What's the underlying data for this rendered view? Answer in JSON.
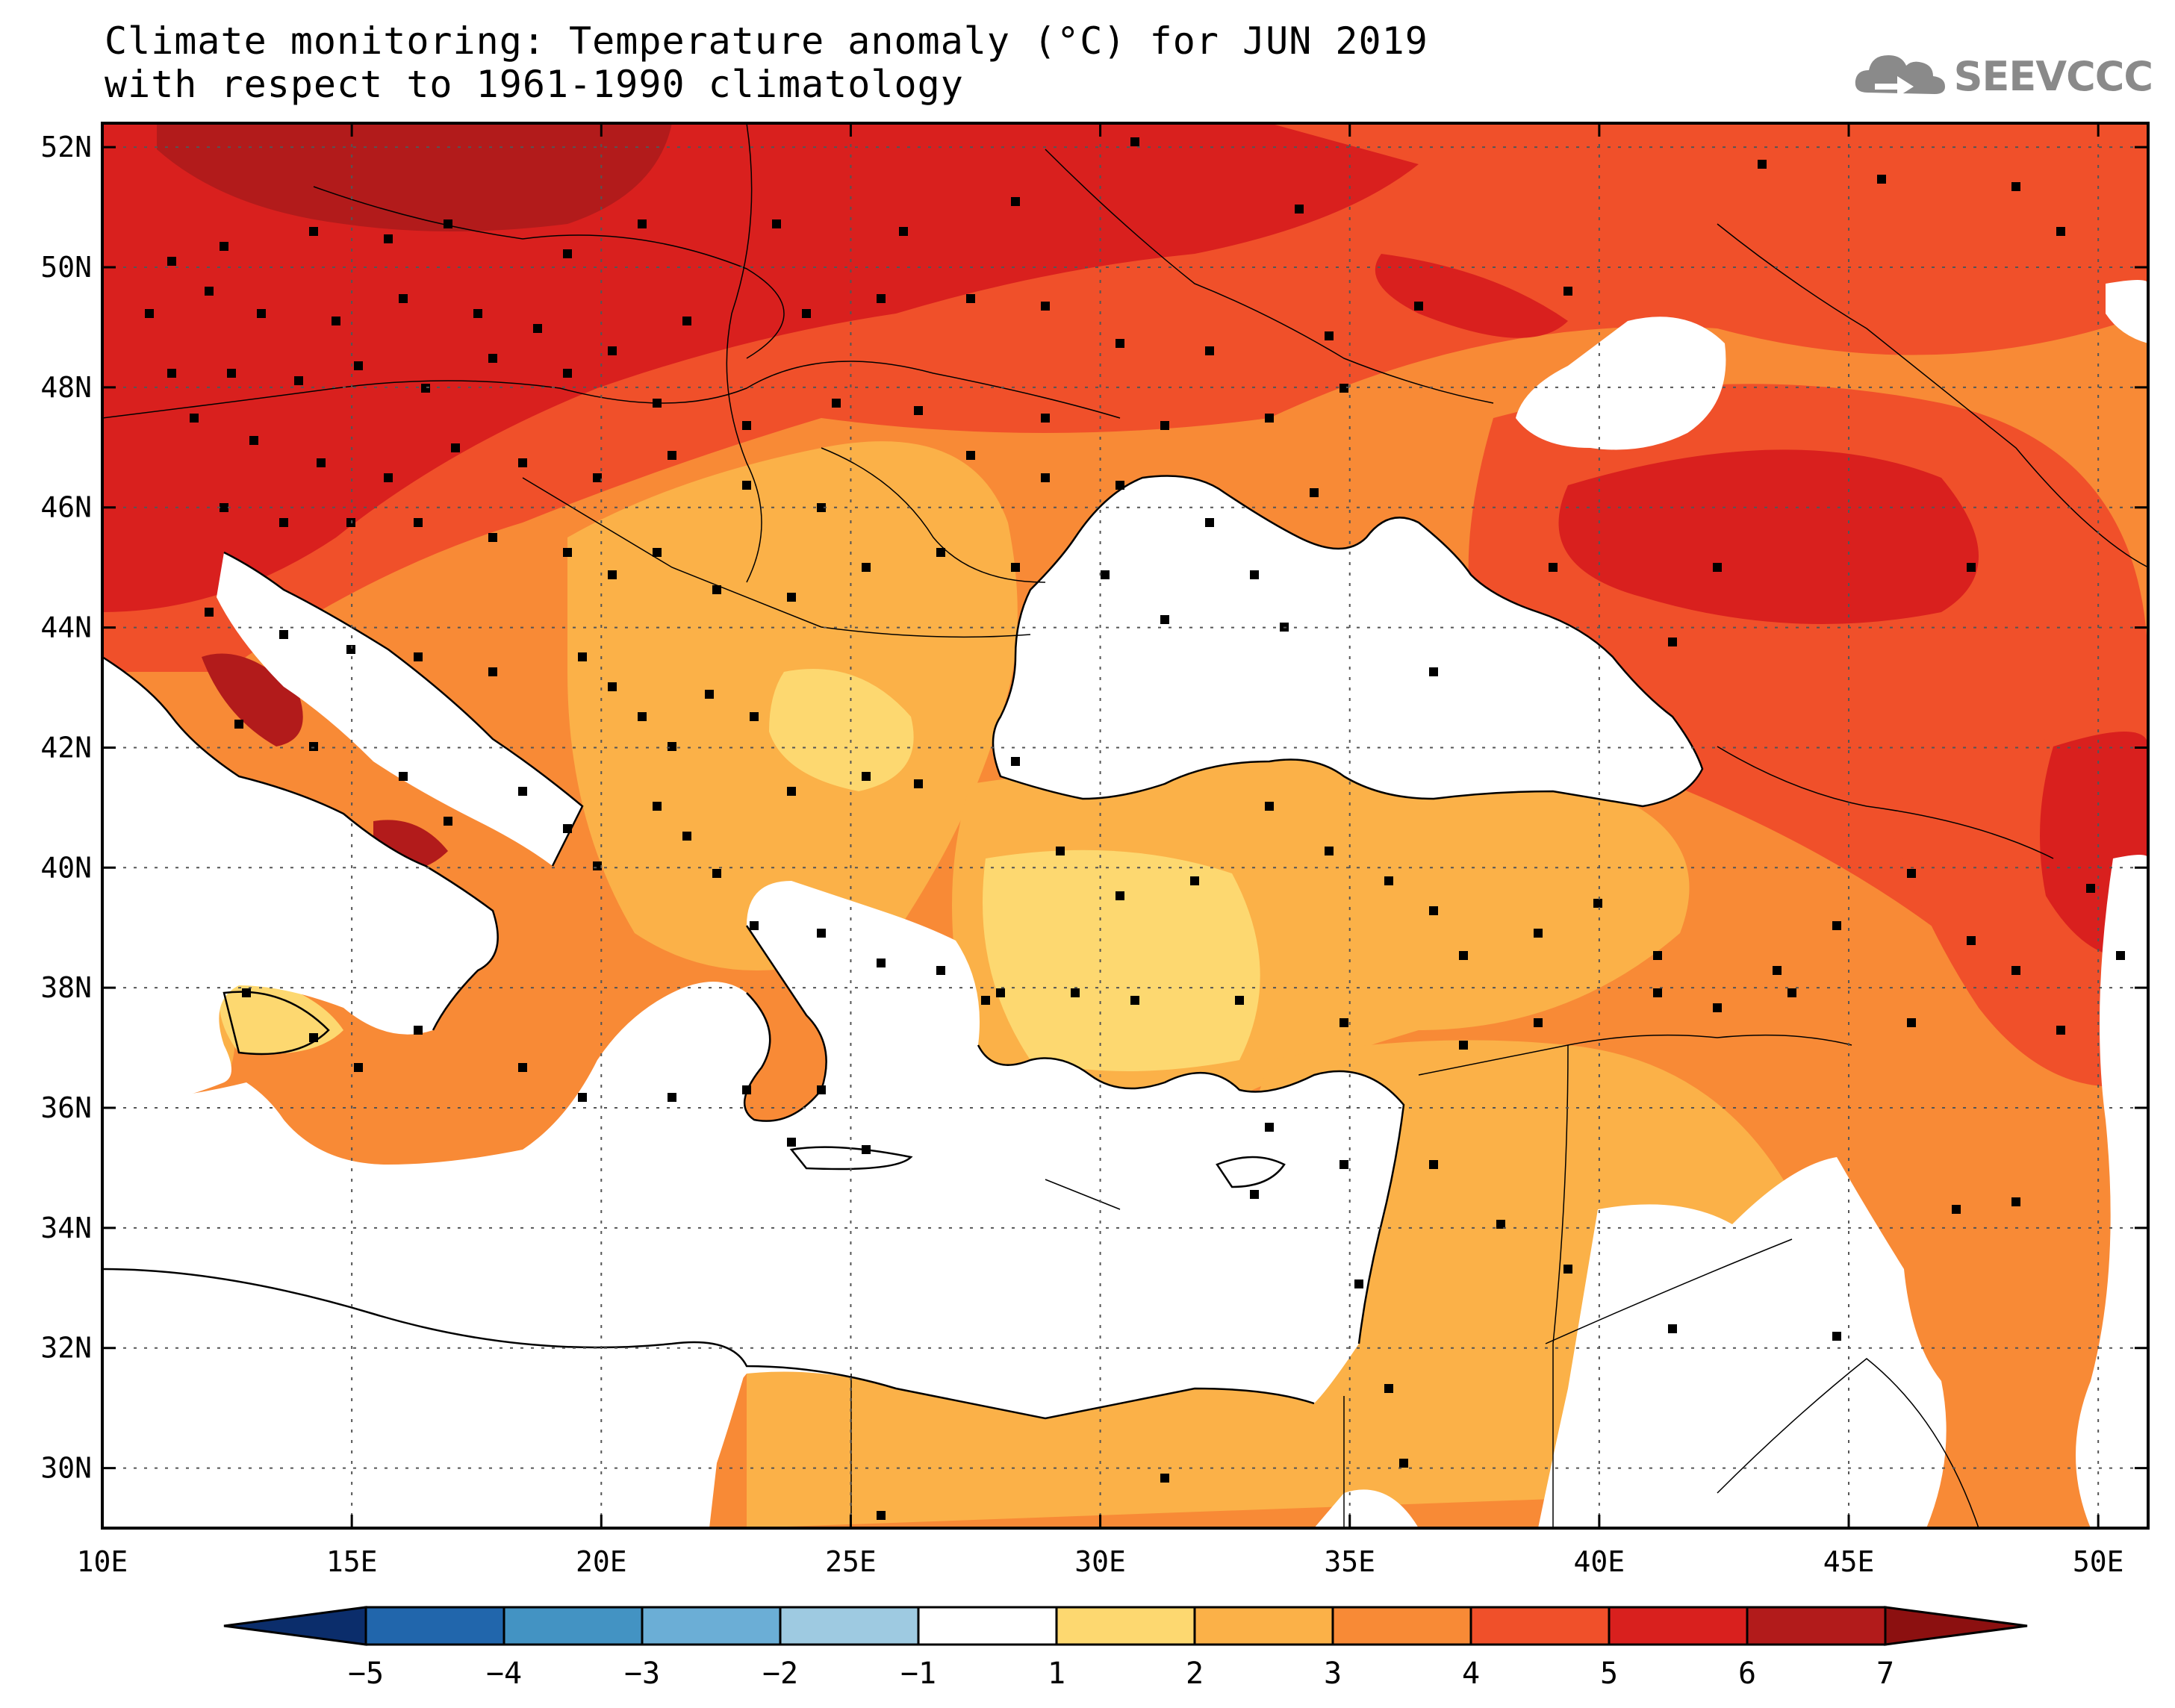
{
  "title": {
    "line1": "Climate monitoring: Temperature anomaly (°C) for JUN 2019",
    "line2": "with respect to 1961-1990 climatology"
  },
  "logo": {
    "text": "SEEVCCC",
    "icon": "cloud-icon"
  },
  "map": {
    "lon_labels": [
      "10E",
      "15E",
      "20E",
      "25E",
      "30E",
      "35E",
      "40E",
      "45E",
      "50E"
    ],
    "lat_labels": [
      "52N",
      "50N",
      "48N",
      "46N",
      "44N",
      "42N",
      "40N",
      "38N",
      "36N",
      "34N",
      "32N",
      "30N"
    ],
    "lon_range": [
      10,
      51
    ],
    "lat_range": [
      29,
      52.4
    ],
    "gridlines": "dotted"
  },
  "colorbar": {
    "labels": [
      "-5",
      "-4",
      "-3",
      "-2",
      "-1",
      "1",
      "2",
      "3",
      "4",
      "5",
      "6",
      "7"
    ],
    "colors": [
      "#0b2d6b",
      "#2166ac",
      "#4393c3",
      "#6baed6",
      "#9ecae1",
      "#ffffff",
      "#fdd870",
      "#fbb148",
      "#f88a36",
      "#f0502a",
      "#d9201e",
      "#b21b1b",
      "#8c1010"
    ]
  }
}
